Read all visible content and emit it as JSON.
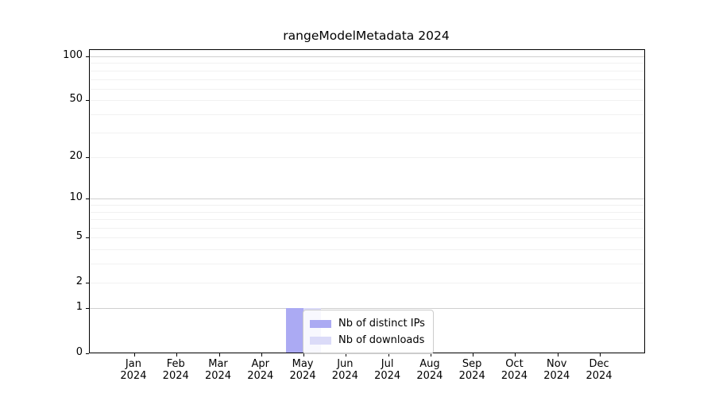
{
  "title": "rangeModelMetadata 2024",
  "legend": {
    "items": [
      {
        "label": "Nb of distinct IPs",
        "color": "#abaaf3"
      },
      {
        "label": "Nb of downloads",
        "color": "#dbdbf8"
      }
    ]
  },
  "chart_data": {
    "type": "bar",
    "title": "rangeModelMetadata 2024",
    "categories": [
      "Jan 2024",
      "Feb 2024",
      "Mar 2024",
      "Apr 2024",
      "May 2024",
      "Jun 2024",
      "Jul 2024",
      "Aug 2024",
      "Sep 2024",
      "Oct 2024",
      "Nov 2024",
      "Dec 2024"
    ],
    "category_line1": [
      "Jan",
      "Feb",
      "Mar",
      "Apr",
      "May",
      "Jun",
      "Jul",
      "Aug",
      "Sep",
      "Oct",
      "Nov",
      "Dec"
    ],
    "category_line2": "2024",
    "series": [
      {
        "name": "Nb of distinct IPs",
        "color": "#abaaf3",
        "values": [
          0,
          0,
          0,
          0,
          1,
          0,
          0,
          0,
          0,
          0,
          0,
          0
        ]
      },
      {
        "name": "Nb of downloads",
        "color": "#dbdbf8",
        "values": [
          0,
          0,
          0,
          0,
          1,
          0,
          0,
          0,
          0,
          0,
          0,
          0
        ]
      }
    ],
    "xlabel": "",
    "ylabel": "",
    "yscale": "log1p",
    "ylim": [
      0,
      100
    ],
    "yticks": [
      0,
      1,
      2,
      5,
      10,
      20,
      50,
      100
    ],
    "major_gridlines": [
      1,
      10,
      100
    ],
    "minor_gridlines": [
      2,
      3,
      4,
      5,
      6,
      7,
      8,
      9,
      20,
      30,
      40,
      50,
      60,
      70,
      80,
      90
    ],
    "grid": "horizontal",
    "legend_position": "lower center (inside plot)"
  }
}
